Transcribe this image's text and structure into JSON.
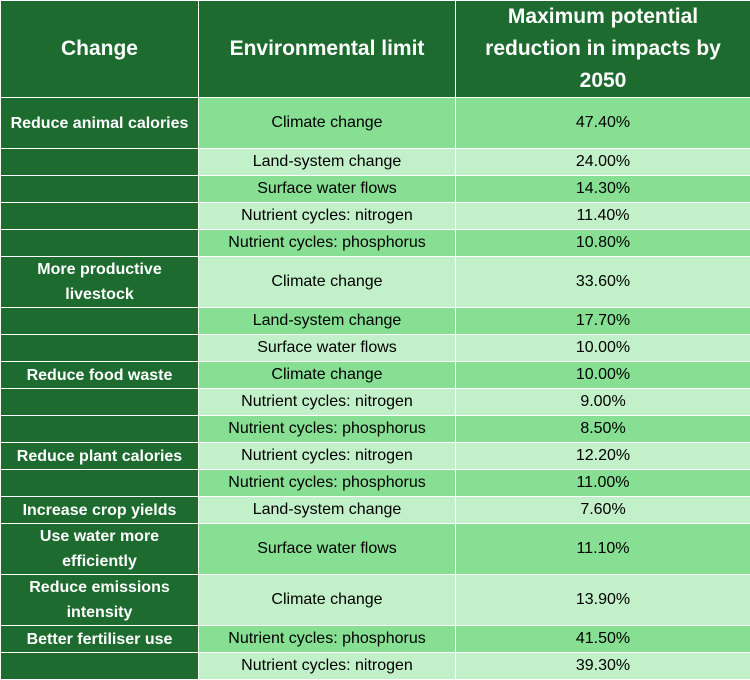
{
  "header": {
    "change": "Change",
    "limit": "Environmental limit",
    "reduction": "Maximum potential reduction in impacts by 2050"
  },
  "rows": [
    {
      "change": "Reduce animal calories",
      "limit": "Climate change",
      "value": "47.40%"
    },
    {
      "change": "",
      "limit": "Land-system change",
      "value": "24.00%"
    },
    {
      "change": "",
      "limit": "Surface water flows",
      "value": "14.30%"
    },
    {
      "change": "",
      "limit": "Nutrient cycles: nitrogen",
      "value": "11.40%"
    },
    {
      "change": "",
      "limit": "Nutrient cycles: phosphorus",
      "value": "10.80%"
    },
    {
      "change": "More productive livestock",
      "limit": "Climate change",
      "value": "33.60%"
    },
    {
      "change": "",
      "limit": "Land-system change",
      "value": "17.70%"
    },
    {
      "change": "",
      "limit": "Surface water flows",
      "value": "10.00%"
    },
    {
      "change": "Reduce food waste",
      "limit": "Climate change",
      "value": "10.00%"
    },
    {
      "change": "",
      "limit": "Nutrient cycles: nitrogen",
      "value": "9.00%"
    },
    {
      "change": "",
      "limit": "Nutrient cycles: phosphorus",
      "value": "8.50%"
    },
    {
      "change": "Reduce plant calories",
      "limit": "Nutrient cycles: nitrogen",
      "value": "12.20%"
    },
    {
      "change": "",
      "limit": "Nutrient cycles: phosphorus",
      "value": "11.00%"
    },
    {
      "change": "Increase crop yields",
      "limit": "Land-system change",
      "value": "7.60%"
    },
    {
      "change": "Use water more efficiently",
      "limit": "Surface water flows",
      "value": "11.10%"
    },
    {
      "change": "Reduce emissions intensity",
      "limit": "Climate change",
      "value": "13.90%"
    },
    {
      "change": "Better fertiliser use",
      "limit": "Nutrient cycles: phosphorus",
      "value": "41.50%"
    },
    {
      "change": "",
      "limit": "Nutrient cycles: nitrogen",
      "value": "39.30%"
    }
  ],
  "colors": {
    "header": "#1e6b2f",
    "row_dark": "#86df92",
    "row_light": "#c2f0c8",
    "border": "#ffffff"
  }
}
